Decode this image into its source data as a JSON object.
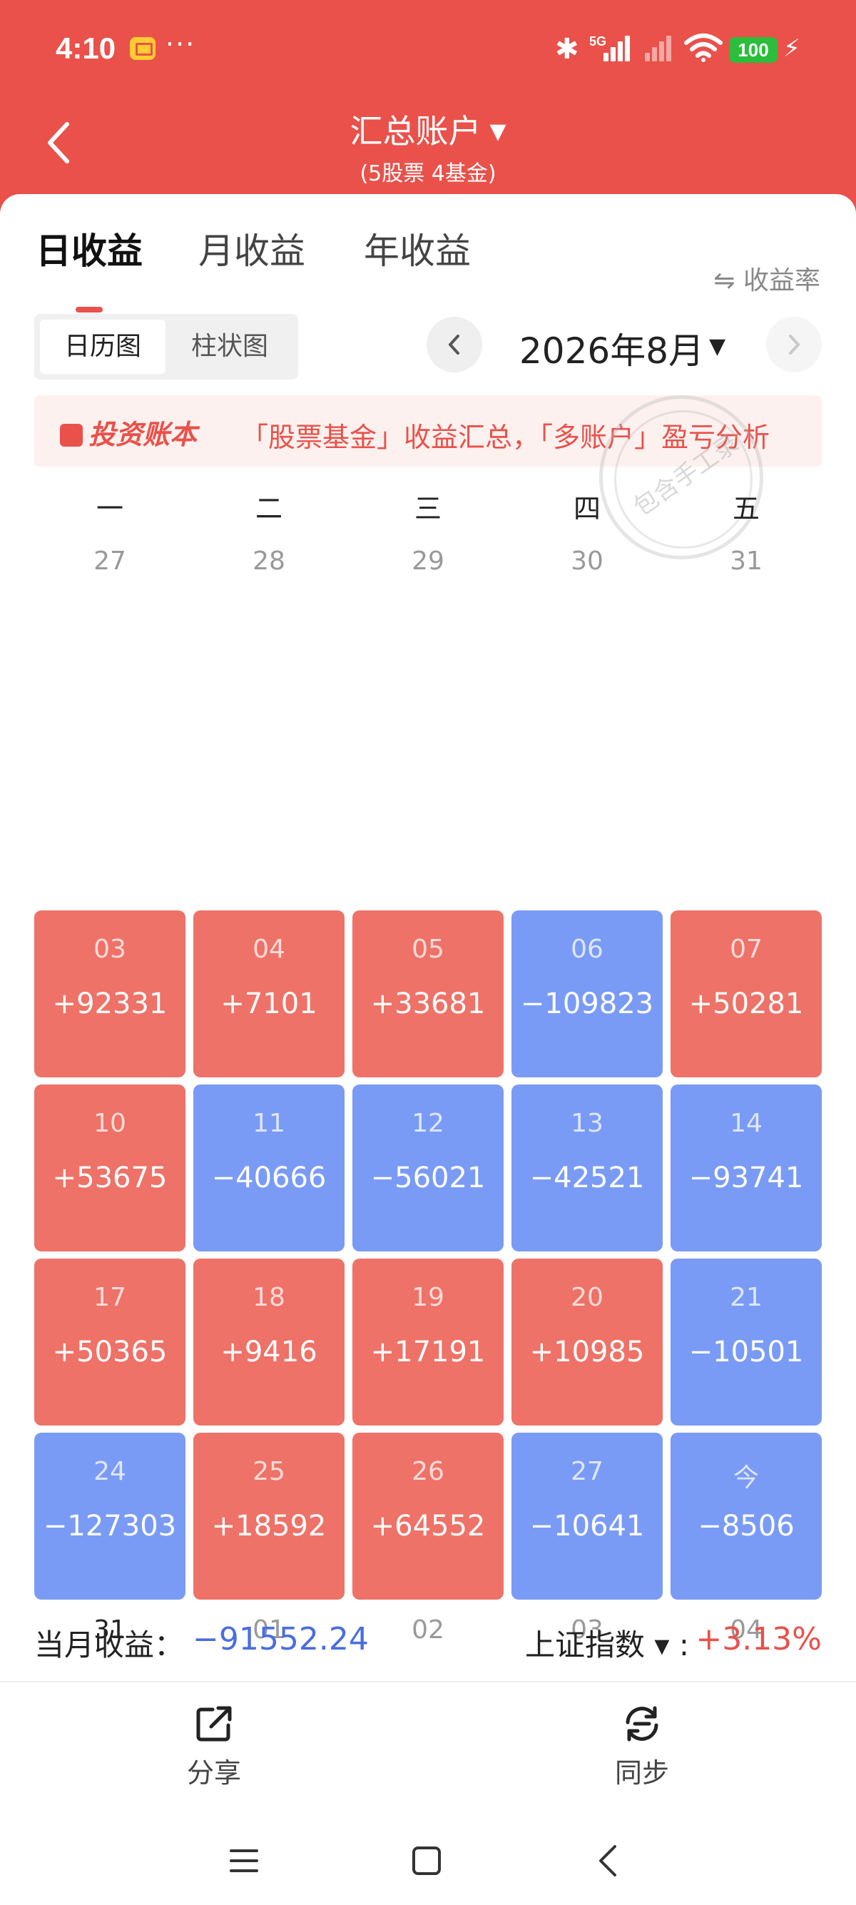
{
  "status_bar": {
    "time": "4:10",
    "dots": "···",
    "network": "5G",
    "battery": "100"
  },
  "header": {
    "title": "汇总账户",
    "subtitle": "(5股票 4基金)"
  },
  "tabs": [
    {
      "label": "日收益",
      "active": true
    },
    {
      "label": "月收益",
      "active": false
    },
    {
      "label": "年收益",
      "active": false
    }
  ],
  "rate_toggle": "⇋ 收益率",
  "view_toggle": {
    "calendar": "日历图",
    "bar": "柱状图"
  },
  "month": {
    "label": "2026年8月"
  },
  "banner": {
    "logo": "投资账本",
    "text": "「股票基金」收益汇总，「多账户」盈亏分析"
  },
  "stamp": {
    "text": "包含手工录"
  },
  "weekdays": [
    "一",
    "二",
    "三",
    "四",
    "五"
  ],
  "calendar": {
    "prev_row": [
      "27",
      "28",
      "29",
      "30",
      "31"
    ],
    "weeks": [
      [
        {
          "day": "03",
          "pnl": "+92331",
          "trend": "up"
        },
        {
          "day": "04",
          "pnl": "+7101",
          "trend": "up"
        },
        {
          "day": "05",
          "pnl": "+33681",
          "trend": "up"
        },
        {
          "day": "06",
          "pnl": "−109823",
          "trend": "down"
        },
        {
          "day": "07",
          "pnl": "+50281",
          "trend": "up"
        }
      ],
      [
        {
          "day": "10",
          "pnl": "+53675",
          "trend": "up"
        },
        {
          "day": "11",
          "pnl": "−40666",
          "trend": "down"
        },
        {
          "day": "12",
          "pnl": "−56021",
          "trend": "down"
        },
        {
          "day": "13",
          "pnl": "−42521",
          "trend": "down"
        },
        {
          "day": "14",
          "pnl": "−93741",
          "trend": "down"
        }
      ],
      [
        {
          "day": "17",
          "pnl": "+50365",
          "trend": "up"
        },
        {
          "day": "18",
          "pnl": "+9416",
          "trend": "up"
        },
        {
          "day": "19",
          "pnl": "+17191",
          "trend": "up"
        },
        {
          "day": "20",
          "pnl": "+10985",
          "trend": "up"
        },
        {
          "day": "21",
          "pnl": "−10501",
          "trend": "down"
        }
      ],
      [
        {
          "day": "24",
          "pnl": "−127303",
          "trend": "down"
        },
        {
          "day": "25",
          "pnl": "+18592",
          "trend": "up"
        },
        {
          "day": "26",
          "pnl": "+64552",
          "trend": "up"
        },
        {
          "day": "27",
          "pnl": "−10641",
          "trend": "down"
        },
        {
          "day": "今",
          "pnl": "−8506",
          "trend": "down"
        }
      ]
    ],
    "next_row": [
      "31",
      "01",
      "02",
      "03",
      "04"
    ]
  },
  "summary": {
    "month_label": "当月收益：",
    "month_value": "−91552.24",
    "index_label": "上证指数",
    "index_caret": "▾",
    "index_colon": ":",
    "index_value": "+3.13%"
  },
  "actions": {
    "share": "分享",
    "sync": "同步"
  },
  "colors": {
    "brand_red": "#e9514a",
    "gain": "#ee7267",
    "loss": "#7a9bf5",
    "loss_text": "#4a6de0"
  }
}
